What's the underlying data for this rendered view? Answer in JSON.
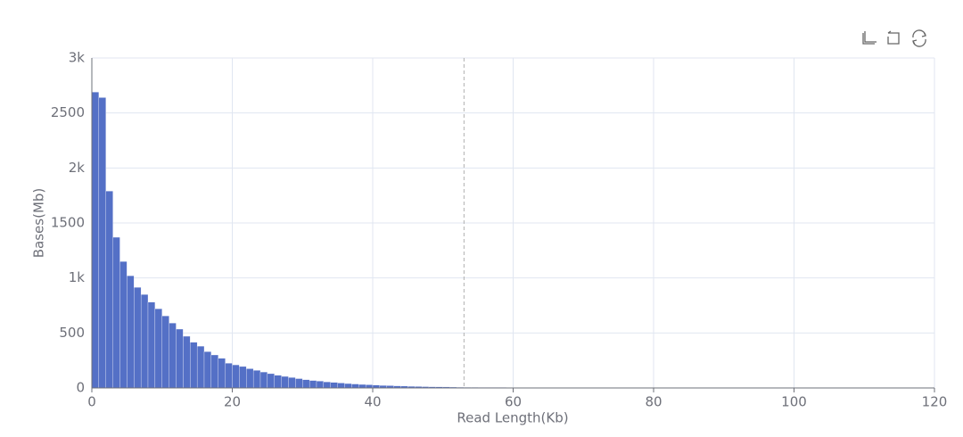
{
  "chart_data": {
    "type": "histogram",
    "x_label": "Read Length(Kb)",
    "y_label": "Bases(Mb)",
    "bins": [
      0,
      1,
      2,
      3,
      4,
      5,
      6,
      7,
      8,
      9,
      10,
      11,
      12,
      13,
      14,
      15,
      16,
      17,
      18,
      19,
      20,
      21,
      22,
      23,
      24,
      25,
      26,
      27,
      28,
      29,
      30,
      31,
      32,
      33,
      34,
      35,
      36,
      37,
      38,
      39,
      40,
      41,
      42,
      43,
      44,
      45,
      46,
      47,
      48,
      49,
      50,
      51,
      52,
      53,
      54,
      55,
      56,
      57,
      58,
      59,
      60,
      61,
      62,
      63,
      64,
      65,
      66,
      67,
      68,
      69,
      70,
      71,
      72,
      73,
      74,
      75,
      76,
      77,
      78,
      79,
      80,
      81,
      82,
      83,
      84,
      85,
      86,
      87,
      88,
      89,
      90,
      91,
      92,
      93,
      94,
      95,
      96,
      97,
      98,
      99,
      100,
      101,
      102,
      103
    ],
    "values": [
      2690,
      2640,
      1790,
      1370,
      1150,
      1020,
      915,
      850,
      780,
      720,
      655,
      590,
      535,
      470,
      415,
      380,
      330,
      300,
      270,
      225,
      210,
      195,
      175,
      160,
      145,
      130,
      115,
      105,
      95,
      85,
      75,
      68,
      62,
      55,
      50,
      45,
      40,
      36,
      32,
      29,
      26,
      23,
      21,
      19,
      17,
      15,
      13,
      12,
      11,
      10,
      9,
      8,
      7,
      6,
      6,
      5,
      5,
      5,
      5,
      4,
      4,
      4,
      4,
      4,
      4,
      4,
      3,
      3,
      3,
      3,
      3,
      3,
      3,
      3,
      3,
      3,
      3,
      3,
      3,
      3,
      3,
      3,
      3,
      2,
      2,
      2,
      2,
      2,
      2,
      2,
      2,
      2,
      2,
      2,
      2,
      2,
      2,
      2,
      2,
      2,
      2,
      2,
      2
    ],
    "color": "#5470c6",
    "mark_line_x": 53,
    "xlim": [
      0,
      120
    ],
    "xticks": [
      0,
      20,
      40,
      60,
      80,
      100,
      120
    ],
    "ylim": [
      0,
      3000
    ],
    "yticks": [
      0,
      500,
      {
        "value": 1000,
        "label": "1k"
      },
      1500,
      {
        "value": 2000,
        "label": "2k"
      },
      2500,
      {
        "value": 3000,
        "label": "3k"
      }
    ],
    "grid": true
  }
}
